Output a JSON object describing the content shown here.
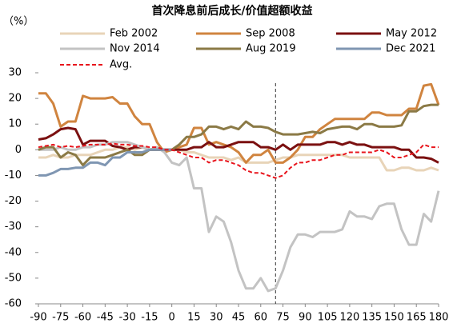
{
  "chart_data": {
    "type": "line",
    "title": "首次降息前后成长/价值超额收益",
    "y_unit_label": "（%）",
    "x": [
      -90,
      -85,
      -80,
      -75,
      -70,
      -65,
      -60,
      -55,
      -50,
      -45,
      -40,
      -35,
      -30,
      -25,
      -20,
      -15,
      -10,
      -5,
      0,
      5,
      10,
      15,
      20,
      25,
      30,
      35,
      40,
      45,
      50,
      55,
      60,
      65,
      70,
      75,
      80,
      85,
      90,
      95,
      100,
      105,
      110,
      115,
      120,
      125,
      130,
      135,
      140,
      145,
      150,
      155,
      160,
      165,
      170,
      175,
      180
    ],
    "series": [
      {
        "name": "Feb 2002",
        "color": "#e8d4b8",
        "values": [
          -3,
          -3,
          -2,
          -3,
          -3,
          -2,
          -2,
          -2,
          -1,
          0,
          0,
          1,
          1,
          0,
          1,
          0,
          0,
          0,
          0,
          0,
          -1,
          -1,
          -2,
          -3,
          -3,
          -3,
          -4,
          -3,
          -5,
          -5,
          -5,
          -5,
          -4,
          -3,
          -3,
          -2,
          -2,
          -2,
          -2,
          -2,
          -2,
          -2,
          -3,
          -3,
          -3,
          -3,
          -3,
          -8,
          -8,
          -7,
          -7,
          -8,
          -8,
          -7,
          -8
        ]
      },
      {
        "name": "Sep 2008",
        "color": "#d0843f",
        "values": [
          22,
          22,
          18,
          9,
          11,
          11,
          21,
          20,
          20,
          20,
          20.5,
          18,
          18,
          13,
          10,
          10,
          3,
          -1,
          0,
          1,
          2,
          8.5,
          8.5,
          2,
          3,
          2,
          1,
          -1,
          -5,
          -2,
          -2,
          0,
          -5,
          -5,
          -3,
          0,
          5,
          5,
          8,
          10,
          12,
          12,
          12,
          12,
          12,
          14.5,
          14.5,
          13.5,
          13.5,
          13.5,
          16,
          16,
          25,
          25.5,
          17.5
        ]
      },
      {
        "name": "May 2012",
        "color": "#7b1010",
        "values": [
          4,
          4.5,
          6,
          8,
          8.5,
          8,
          2,
          3.5,
          3.5,
          3.5,
          1.5,
          1,
          0,
          1,
          1,
          0,
          0,
          0,
          0,
          0,
          0,
          1,
          1,
          3,
          1,
          1,
          2,
          3,
          3,
          3,
          1,
          1,
          0,
          2,
          0,
          2,
          2,
          2,
          2,
          3,
          3,
          2,
          3,
          2,
          2,
          1,
          1,
          1,
          1,
          0,
          0,
          -3,
          -3,
          -3.5,
          -5
        ]
      },
      {
        "name": "Nov 2014",
        "color": "#c3c3c3",
        "values": [
          0,
          0,
          0,
          1,
          0,
          0,
          1,
          1,
          2,
          2,
          3,
          3,
          3,
          2,
          1,
          0,
          1,
          -1,
          -5,
          -6,
          -3,
          -15,
          -15,
          -32,
          -26,
          -28,
          -36,
          -47,
          -54,
          -54,
          -50,
          -55,
          -54,
          -47,
          -38,
          -33,
          -33,
          -34,
          -32,
          -32,
          -32,
          -31,
          -24,
          -26,
          -26,
          -27,
          -22,
          -21,
          -21,
          -31,
          -37,
          -37,
          -25,
          -28,
          -16
        ]
      },
      {
        "name": "Aug 2019",
        "color": "#8b7a46",
        "values": [
          0,
          1,
          1,
          -3,
          -1,
          -2,
          -6,
          -3,
          -3,
          -3,
          -2,
          -1,
          0,
          -2,
          -2,
          0,
          0,
          0,
          0,
          2,
          5,
          5,
          6,
          9,
          9,
          8,
          9,
          8,
          11,
          9,
          9,
          8.5,
          7,
          6,
          6,
          6,
          6.5,
          7,
          6.5,
          8,
          8.5,
          9,
          9,
          8,
          10,
          10,
          9,
          9,
          9,
          9.5,
          15,
          15,
          17,
          17.5,
          17.5
        ]
      },
      {
        "name": "Dec 2021",
        "color": "#7f96b2",
        "values": [
          -10,
          -10,
          -9,
          -7.5,
          -7.5,
          -7,
          -7,
          -5,
          -5,
          -6,
          -3,
          -3,
          -1,
          -1,
          -1,
          0,
          0,
          0,
          0,
          null,
          null,
          null,
          null,
          null,
          null,
          null,
          null,
          null,
          null,
          null,
          null,
          null,
          null,
          null,
          null,
          null,
          null,
          null,
          null,
          null,
          null,
          null,
          null,
          null,
          null,
          null,
          null,
          null,
          null,
          null,
          null,
          null,
          null,
          null,
          null
        ]
      },
      {
        "name": "Avg.",
        "color": "#e8141c",
        "dashed": true,
        "values": [
          1,
          1.5,
          2,
          1,
          1.5,
          1,
          1.5,
          2,
          2,
          2,
          2.5,
          2,
          2,
          1.5,
          1.5,
          1,
          1,
          0,
          0,
          -1,
          -2,
          -3,
          -3,
          -5,
          -4,
          -4,
          -5,
          -6,
          -8,
          -9,
          -9,
          -10,
          -11,
          -10,
          -7,
          -5,
          -5,
          -4,
          -4,
          -3,
          -2,
          -2,
          -1,
          -1,
          -1,
          -1,
          0,
          -1,
          -3,
          -3,
          -2,
          -1,
          2,
          1,
          1
        ]
      }
    ],
    "reference_line_x": 70,
    "xlim": [
      -90,
      180
    ],
    "xticks": [
      -90,
      -75,
      -60,
      -45,
      -30,
      -15,
      0,
      15,
      30,
      45,
      60,
      75,
      90,
      105,
      120,
      135,
      150,
      165,
      180
    ],
    "ylim": [
      -60,
      30
    ],
    "yticks": [
      -60,
      -50,
      -40,
      -30,
      -20,
      -10,
      0,
      10,
      20,
      30
    ]
  }
}
